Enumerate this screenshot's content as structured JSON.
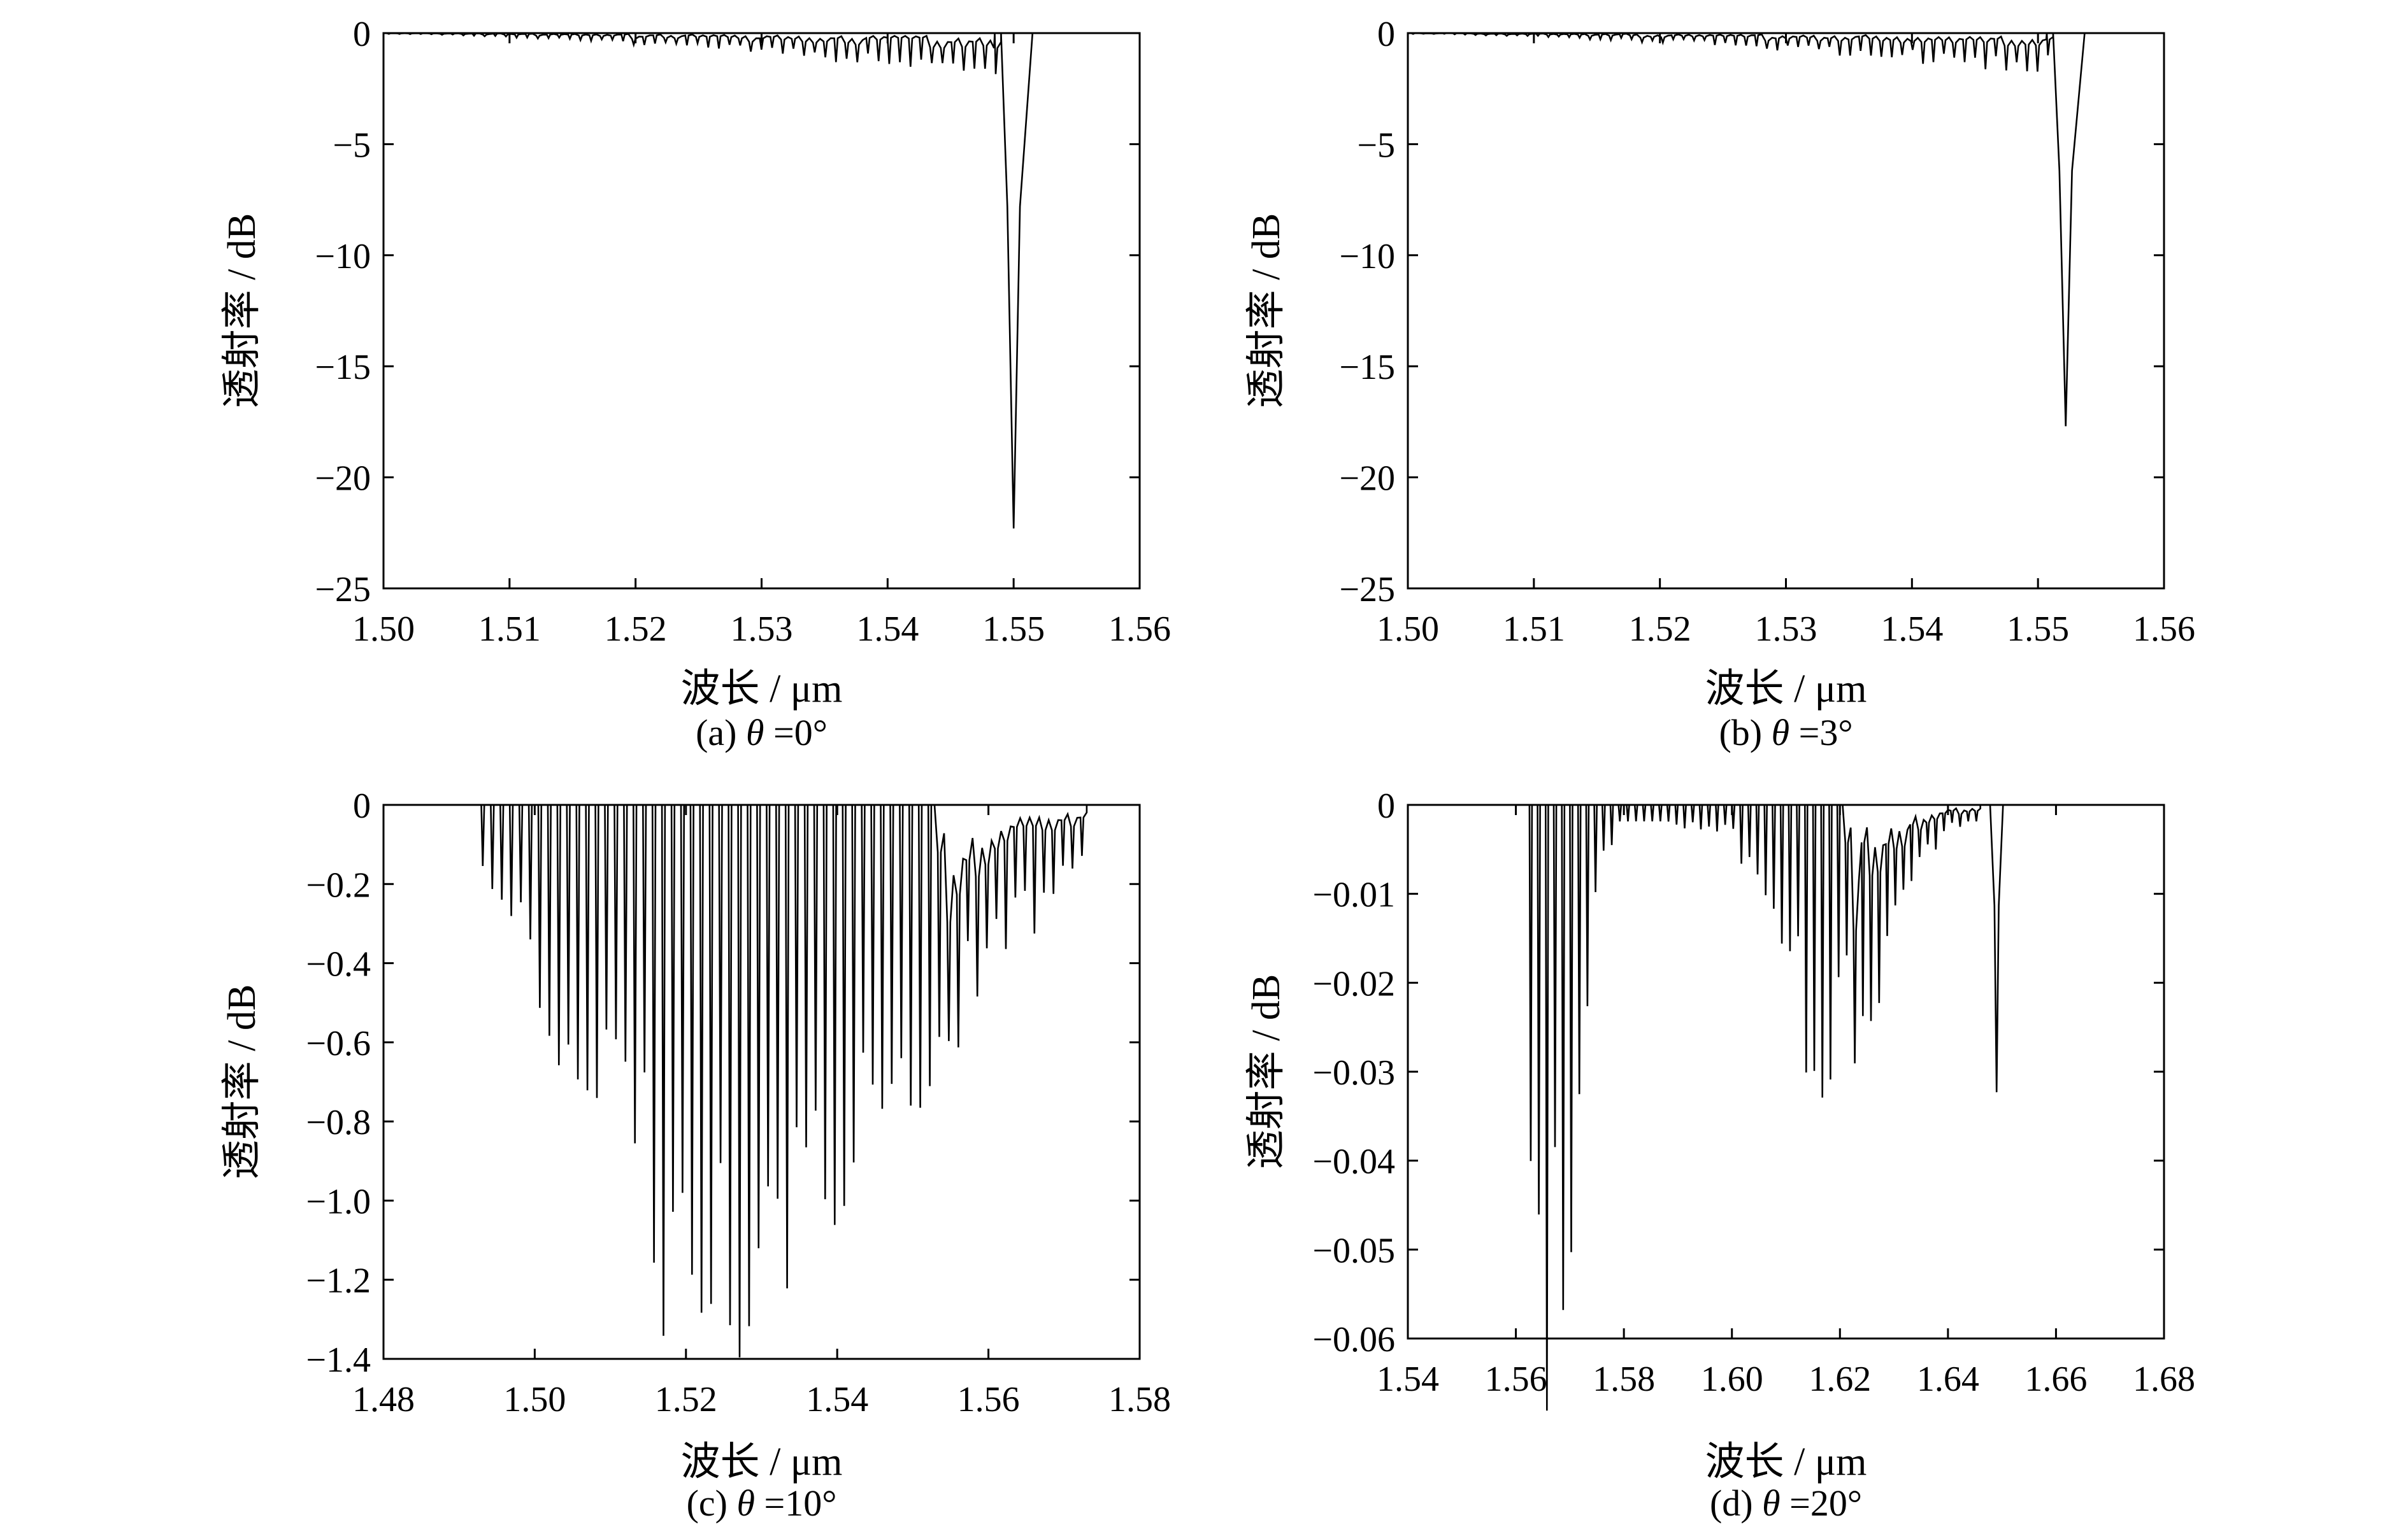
{
  "chart_data": [
    {
      "type": "line",
      "caption_prefix": "(a) ",
      "caption_symbol": "θ",
      "caption_suffix": " =0°",
      "xlabel": "波长 / μm",
      "ylabel": "透射率 / dB",
      "xlim": [
        1.5,
        1.56
      ],
      "ylim": [
        -25,
        0
      ],
      "xticks": [
        "1.50",
        "1.51",
        "1.52",
        "1.53",
        "1.54",
        "1.55",
        "1.56"
      ],
      "yticks": [
        "0",
        "−5",
        "−10",
        "−15",
        "−20",
        "−25"
      ],
      "grid": false,
      "side_lobes": {
        "start": 1.5,
        "end": 1.549,
        "count": 58,
        "min_depth": 0.03,
        "max_depth": 1.7,
        "shape": "rising",
        "ripple": 0.25
      },
      "main_dips": [
        {
          "x": 1.55,
          "y": -22.3,
          "width": 0.0005
        }
      ]
    },
    {
      "type": "line",
      "caption_prefix": "(b) ",
      "caption_symbol": "θ",
      "caption_suffix": " =3°",
      "xlabel": "波长 / μm",
      "ylabel": "透射率 / dB",
      "xlim": [
        1.5,
        1.56
      ],
      "ylim": [
        -25,
        0
      ],
      "xticks": [
        "1.50",
        "1.51",
        "1.52",
        "1.53",
        "1.54",
        "1.55",
        "1.56"
      ],
      "yticks": [
        "0",
        "−5",
        "−10",
        "−15",
        "−20",
        "−25"
      ],
      "grid": false,
      "side_lobes": {
        "start": 1.5,
        "end": 1.5512,
        "count": 62,
        "min_depth": 0.03,
        "max_depth": 1.5,
        "shape": "rising",
        "ripple": 0.35
      },
      "main_dips": [
        {
          "x": 1.5522,
          "y": -17.7,
          "width": 0.0005
        }
      ]
    },
    {
      "type": "line",
      "caption_prefix": "(c) ",
      "caption_symbol": "θ",
      "caption_suffix": " =10°",
      "xlabel": "波长 / μm",
      "ylabel": "透射率 / dB",
      "xlim": [
        1.48,
        1.58
      ],
      "ylim": [
        -1.4,
        0
      ],
      "xticks": [
        "1.48",
        "1.50",
        "1.52",
        "1.54",
        "1.56",
        "1.58"
      ],
      "yticks": [
        "0",
        "−0.2",
        "−0.4",
        "−0.6",
        "−0.8",
        "−1.0",
        "−1.2",
        "−1.4"
      ],
      "grid": false,
      "side_lobes": {
        "start": 1.4925,
        "end": 1.573,
        "count": 64,
        "min_depth": 0.05,
        "max_depth": 1.2,
        "shape": "triangle",
        "peak_at": 1.521,
        "ripple": 0.3
      },
      "main_dips": []
    },
    {
      "type": "line",
      "caption_prefix": "(d) ",
      "caption_symbol": "θ",
      "caption_suffix": " =20°",
      "xlabel": "波长 / μm",
      "ylabel": "透射率 / dB",
      "xlim": [
        1.54,
        1.68
      ],
      "ylim": [
        -0.065,
        0
      ],
      "xticks": [
        "1.54",
        "1.56",
        "1.58",
        "1.60",
        "1.62",
        "1.64",
        "1.66",
        "1.68"
      ],
      "yticks": [
        "0",
        "−0.01",
        "−0.02",
        "−0.03",
        "−0.04",
        "−0.05",
        "−0.06"
      ],
      "grid": false,
      "side_lobes": {
        "start": 1.562,
        "end": 1.646,
        "count": 56,
        "min_depth": 0.002,
        "max_depth": 0.057,
        "shape": "bimodal",
        "peak_at": 1.567,
        "second_peak": 1.619,
        "second_depth": 0.028,
        "ripple": 0.35
      },
      "main_dips": [
        {
          "x": 1.649,
          "y": -0.035,
          "width": 0.0004
        }
      ]
    }
  ]
}
